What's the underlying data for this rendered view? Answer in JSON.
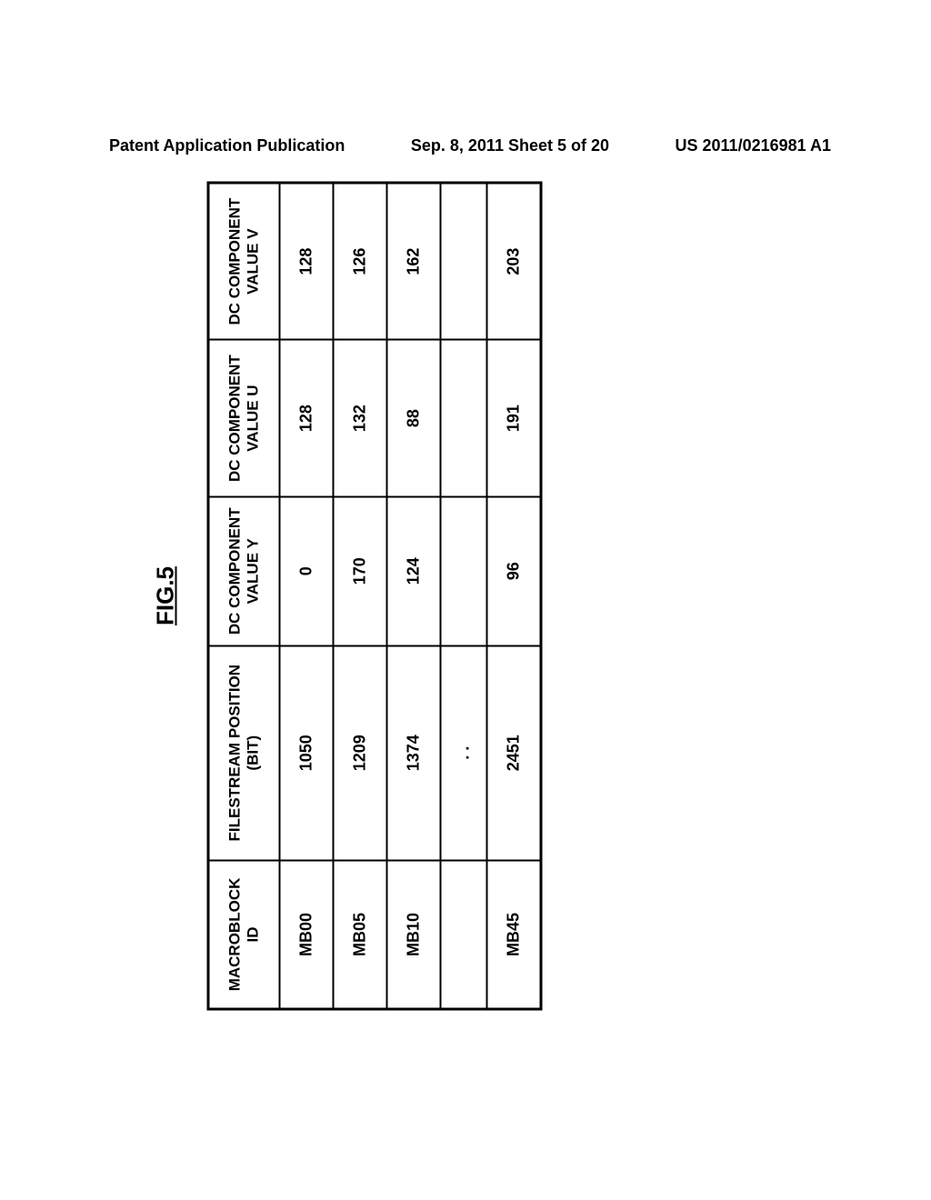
{
  "header": {
    "left": "Patent Application Publication",
    "center": "Sep. 8, 2011  Sheet 5 of 20",
    "right": "US 2011/0216981 A1"
  },
  "figure_label": "FIG.5",
  "table": {
    "columns": [
      "MACROBLOCK ID",
      "FILESTREAM POSITION (BIT)",
      "DC COMPONENT VALUE Y",
      "DC COMPONENT VALUE U",
      "DC COMPONENT VALUE V"
    ],
    "rows": [
      {
        "id": "MB00",
        "pos": "1050",
        "y": "0",
        "u": "128",
        "v": "128"
      },
      {
        "id": "MB05",
        "pos": "1209",
        "y": "170",
        "u": "132",
        "v": "126"
      },
      {
        "id": "MB10",
        "pos": "1374",
        "y": "124",
        "u": "88",
        "v": "162"
      },
      {
        "id": "",
        "pos": ". .",
        "y": "",
        "u": "",
        "v": ""
      },
      {
        "id": "MB45",
        "pos": "2451",
        "y": "96",
        "u": "191",
        "v": "203"
      }
    ]
  }
}
